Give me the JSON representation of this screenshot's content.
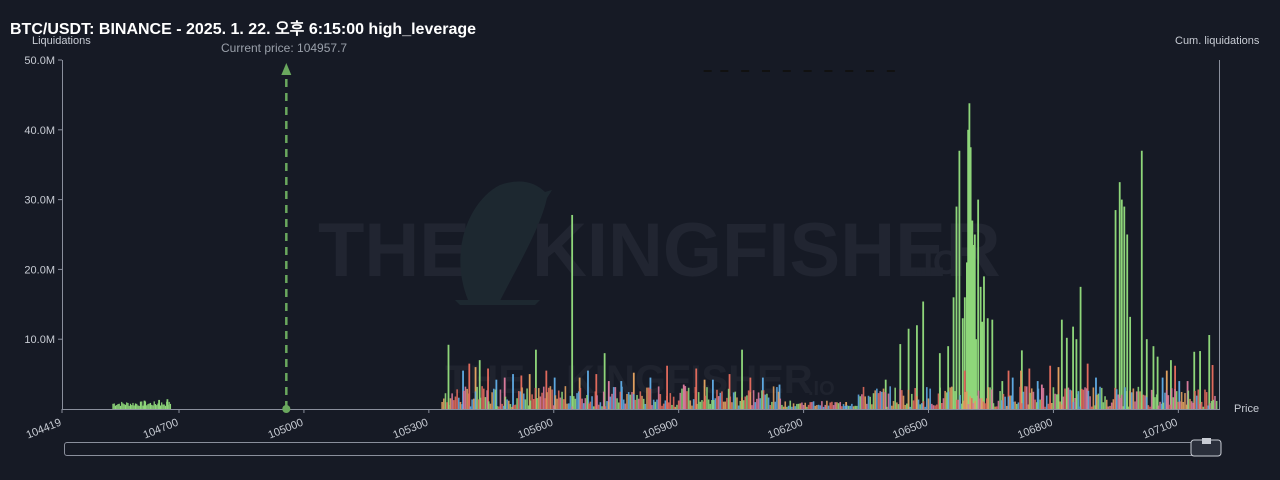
{
  "title": "BTC/USDT: BINANCE - 2025. 1. 22. 오후 6:15:00 high_leverage",
  "colors": {
    "background": "#161a25",
    "axis": "#8a8f9c",
    "green": "#8ed67a",
    "blue": "#5ea8e0",
    "red": "#e06a5c",
    "orange": "#e0a060",
    "pink": "#d87a9c",
    "price_marker": "#6aa85e"
  },
  "watermark": {
    "left": "THE",
    "right": "KINGFISHER",
    "suffix": ".IO"
  },
  "chart_data": {
    "type": "bar",
    "title": "BTC/USDT: BINANCE - 2025. 1. 22. 오후 6:15:00 high_leverage",
    "ylabel": "Liquidations",
    "y2label": "Cum. liquidations",
    "xlabel": "Price",
    "ylim": [
      0,
      50000000
    ],
    "xlim": [
      104419,
      107200
    ],
    "yticks": [
      "10.0M",
      "20.0M",
      "30.0M",
      "40.0M",
      "50.0M"
    ],
    "xticks": [
      "104419",
      "104700",
      "105000",
      "105300",
      "105600",
      "105900",
      "106200",
      "106500",
      "106800",
      "107100"
    ],
    "current_price_label": "Current price: 104957.7",
    "current_price": 104957.7,
    "grid": false,
    "series_colors": [
      "green",
      "blue",
      "red",
      "orange",
      "pink"
    ],
    "bars": [
      [
        104615,
        1200000,
        "green"
      ],
      [
        104650,
        1300000,
        "green"
      ],
      [
        104670,
        1400000,
        "green"
      ],
      [
        105642,
        27800000,
        "green"
      ],
      [
        105345,
        9200000,
        "green"
      ],
      [
        105420,
        7000000,
        "green"
      ],
      [
        105555,
        8500000,
        "green"
      ],
      [
        105720,
        8000000,
        "green"
      ],
      [
        106050,
        8500000,
        "green"
      ],
      [
        106395,
        4200000,
        "green"
      ],
      [
        106430,
        9300000,
        "green"
      ],
      [
        106450,
        11500000,
        "green"
      ],
      [
        106470,
        12000000,
        "green"
      ],
      [
        106485,
        15400000,
        "green"
      ],
      [
        106525,
        8000000,
        "green"
      ],
      [
        106545,
        9000000,
        "green"
      ],
      [
        106558,
        16000000,
        "green"
      ],
      [
        106565,
        29000000,
        "green"
      ],
      [
        106572,
        37000000,
        "green"
      ],
      [
        106580,
        13000000,
        "green"
      ],
      [
        106585,
        16000000,
        "green"
      ],
      [
        106590,
        21000000,
        "green"
      ],
      [
        106593,
        40000000,
        "green"
      ],
      [
        106596,
        43800000,
        "green"
      ],
      [
        106599,
        37500000,
        "green"
      ],
      [
        106603,
        27000000,
        "green"
      ],
      [
        106606,
        23500000,
        "green"
      ],
      [
        106609,
        25000000,
        "green"
      ],
      [
        106612,
        10000000,
        "green"
      ],
      [
        106617,
        30000000,
        "green"
      ],
      [
        106623,
        17500000,
        "green"
      ],
      [
        106627,
        12500000,
        "green"
      ],
      [
        106631,
        19000000,
        "green"
      ],
      [
        106640,
        13000000,
        "green"
      ],
      [
        106651,
        12800000,
        "green"
      ],
      [
        106675,
        4000000,
        "green"
      ],
      [
        106722,
        8400000,
        "green"
      ],
      [
        106818,
        12800000,
        "green"
      ],
      [
        106830,
        10200000,
        "green"
      ],
      [
        106845,
        11800000,
        "green"
      ],
      [
        106853,
        10000000,
        "green"
      ],
      [
        106863,
        17500000,
        "green"
      ],
      [
        106947,
        28500000,
        "green"
      ],
      [
        106957,
        32500000,
        "green"
      ],
      [
        106962,
        30000000,
        "green"
      ],
      [
        106968,
        29000000,
        "green"
      ],
      [
        106975,
        25000000,
        "green"
      ],
      [
        106982,
        13200000,
        "green"
      ],
      [
        107010,
        37000000,
        "green"
      ],
      [
        107022,
        10000000,
        "green"
      ],
      [
        107038,
        9000000,
        "green"
      ],
      [
        107048,
        7500000,
        "green"
      ],
      [
        107080,
        7000000,
        "green"
      ],
      [
        107136,
        8200000,
        "green"
      ],
      [
        107150,
        8300000,
        "green"
      ],
      [
        107172,
        10600000,
        "green"
      ],
      [
        105380,
        5500000,
        "blue"
      ],
      [
        105460,
        4200000,
        "blue"
      ],
      [
        105500,
        5000000,
        "blue"
      ],
      [
        105600,
        4500000,
        "blue"
      ],
      [
        105680,
        5500000,
        "blue"
      ],
      [
        105760,
        4000000,
        "blue"
      ],
      [
        105830,
        4500000,
        "blue"
      ],
      [
        105980,
        4200000,
        "blue"
      ],
      [
        106100,
        4500000,
        "blue"
      ],
      [
        106140,
        3500000,
        "blue"
      ],
      [
        106700,
        4500000,
        "blue"
      ],
      [
        106760,
        4000000,
        "blue"
      ],
      [
        106900,
        4500000,
        "blue"
      ],
      [
        107060,
        4500000,
        "blue"
      ],
      [
        107100,
        4000000,
        "blue"
      ],
      [
        105395,
        6500000,
        "red"
      ],
      [
        105440,
        5800000,
        "red"
      ],
      [
        105520,
        4800000,
        "red"
      ],
      [
        105580,
        5500000,
        "red"
      ],
      [
        105700,
        5000000,
        "red"
      ],
      [
        105870,
        6200000,
        "red"
      ],
      [
        105940,
        5800000,
        "red"
      ],
      [
        106020,
        5000000,
        "red"
      ],
      [
        106070,
        4500000,
        "red"
      ],
      [
        106585,
        5500000,
        "red"
      ],
      [
        106690,
        5500000,
        "red"
      ],
      [
        106740,
        5800000,
        "red"
      ],
      [
        106790,
        6200000,
        "red"
      ],
      [
        106880,
        6500000,
        "red"
      ],
      [
        107090,
        6200000,
        "red"
      ],
      [
        107180,
        6300000,
        "red"
      ],
      [
        105410,
        6000000,
        "orange"
      ],
      [
        105540,
        5000000,
        "orange"
      ],
      [
        105660,
        4500000,
        "orange"
      ],
      [
        105790,
        5200000,
        "orange"
      ],
      [
        105960,
        4200000,
        "orange"
      ],
      [
        106300,
        1000000,
        "orange"
      ],
      [
        106720,
        5500000,
        "orange"
      ],
      [
        106810,
        6000000,
        "orange"
      ],
      [
        107070,
        5500000,
        "orange"
      ],
      [
        105480,
        4500000,
        "pink"
      ],
      [
        105730,
        4000000,
        "pink"
      ],
      [
        105910,
        3500000,
        "pink"
      ],
      [
        106770,
        3500000,
        "pink"
      ],
      [
        107120,
        4000000,
        "pink"
      ]
    ],
    "cumulative_series": [
      [
        105960,
        0.06
      ],
      [
        106000,
        0.1
      ],
      [
        106050,
        0.14
      ],
      [
        106100,
        0.18
      ],
      [
        106150,
        0.22
      ],
      [
        106200,
        0.26
      ],
      [
        106250,
        0.3
      ],
      [
        106300,
        0.35
      ],
      [
        106350,
        0.38
      ],
      [
        106400,
        0.42
      ]
    ]
  }
}
